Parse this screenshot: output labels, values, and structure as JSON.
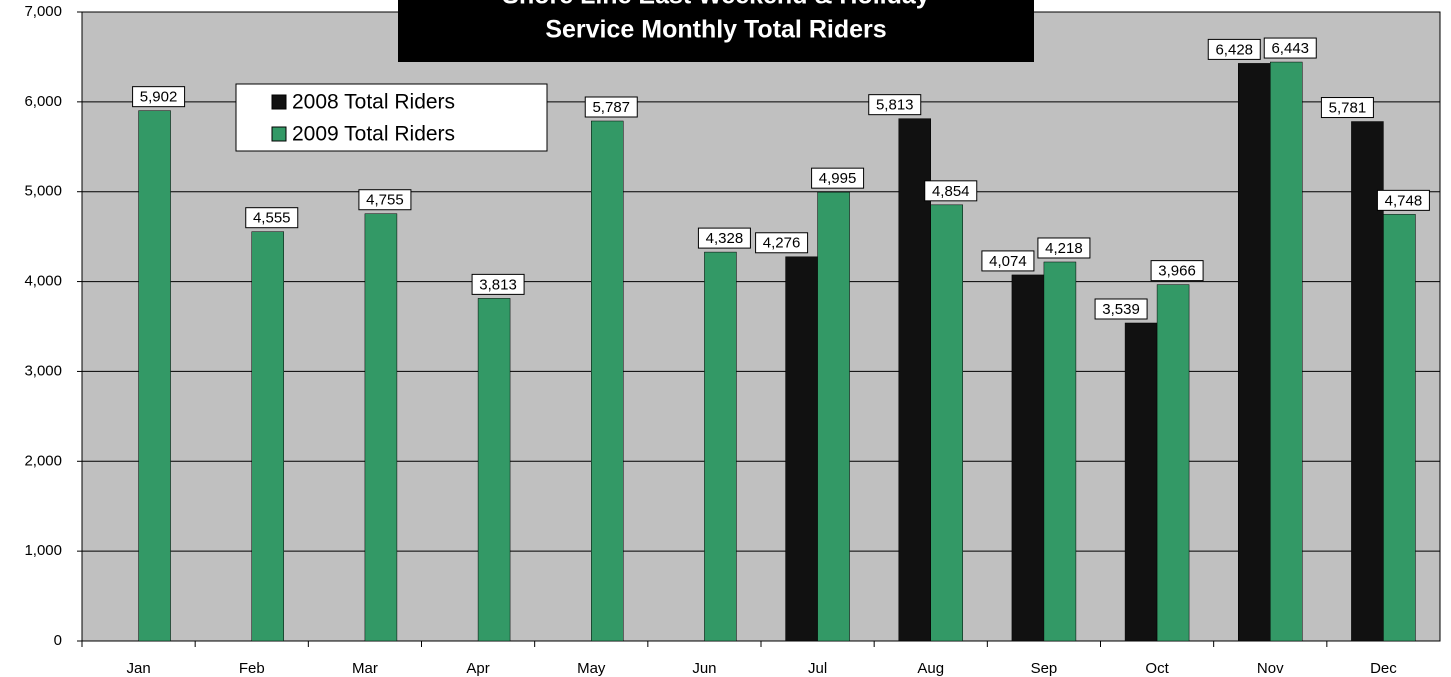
{
  "chart_data": {
    "type": "bar",
    "title": [
      "Shore Line East Weekend & Holiday",
      "Service Monthly Total Riders"
    ],
    "categories": [
      "Jan",
      "Feb",
      "Mar",
      "Apr",
      "May",
      "Jun",
      "Jul",
      "Aug",
      "Sep",
      "Oct",
      "Nov",
      "Dec"
    ],
    "series": [
      {
        "name": "2008 Total Riders",
        "color": "#111111",
        "values": [
          null,
          null,
          null,
          null,
          null,
          null,
          4276,
          5813,
          4074,
          3539,
          6428,
          5781
        ],
        "value_labels": [
          null,
          null,
          null,
          null,
          null,
          null,
          "4,276",
          "5,813",
          "4,074",
          "3,539",
          "6,428",
          "5,781"
        ]
      },
      {
        "name": "2009 Total Riders",
        "color": "#339966",
        "values": [
          5902,
          4555,
          4755,
          3813,
          5787,
          4328,
          4995,
          4854,
          4218,
          3966,
          6443,
          4748
        ],
        "value_labels": [
          "5,902",
          "4,555",
          "4,755",
          "3,813",
          "5,787",
          "4,328",
          "4,995",
          "4,854",
          "4,218",
          "3,966",
          "6,443",
          "4,748"
        ]
      }
    ],
    "ylim": [
      0,
      7000
    ],
    "yticks": [
      0,
      {
        "value": 1000,
        "label": "1,000"
      },
      {
        "value": 2000,
        "label": "2,000"
      },
      {
        "value": 3000,
        "label": "3,000"
      },
      {
        "value": 4000,
        "label": "4,000"
      },
      {
        "value": 5000,
        "label": "5,000"
      },
      {
        "value": 6000,
        "label": "6,000"
      },
      {
        "value": 7000,
        "label": "7,000"
      }
    ],
    "grid": true,
    "legend": "upper left"
  }
}
